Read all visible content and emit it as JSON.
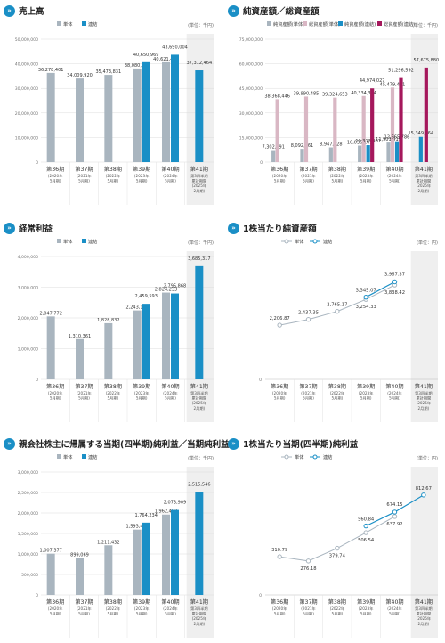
{
  "colors": {
    "nonconsol": "#a9b5bf",
    "consol": "#1a8fc6",
    "nonconsol_assets": "#d9b7c4",
    "consol_assets": "#a5185c",
    "shade": "#efefef",
    "grid": "#dcdcdc"
  },
  "title_icon": "»",
  "periods": [
    {
      "term": "第36期",
      "l1": "(2020年",
      "l2": "5月期)"
    },
    {
      "term": "第37期",
      "l1": "(2021年",
      "l2": "5月期)"
    },
    {
      "term": "第38期",
      "l1": "(2022年",
      "l2": "5月期)"
    },
    {
      "term": "第39期",
      "l1": "(2023年",
      "l2": "5月期)"
    },
    {
      "term": "第40期",
      "l1": "(2024年",
      "l2": "5月期)"
    },
    {
      "term": "第41期",
      "l1": "第3四半期",
      "l2": "累計期間",
      "l3": "(2025年",
      "l4": "2月期)"
    }
  ],
  "periods_assets_last": {
    "term": "第41期",
    "l1": "第3四半期",
    "l2": "会計期間末",
    "l3": "(2025年",
    "l4": "2月期)"
  },
  "chart_data": [
    {
      "type": "bar",
      "title": "売上高",
      "unit": "(単位：千円)",
      "legend": [
        "単体",
        "連結"
      ],
      "ylim": [
        0,
        50000000
      ],
      "yticks": [
        "0",
        "10,000,000",
        "20,000,000",
        "30,000,000",
        "40,000,000",
        "50,000,000"
      ],
      "series": [
        {
          "name": "単体",
          "values": [
            36278401,
            34009920,
            35473831,
            38080136,
            40621473,
            null
          ],
          "labels": [
            "36,278,401",
            "34,009,920",
            "35,473,831",
            "38,080,136",
            "40,621,473",
            ""
          ]
        },
        {
          "name": "連結",
          "values": [
            null,
            null,
            null,
            40650969,
            43690004,
            37312464
          ],
          "labels": [
            "",
            "",
            "",
            "40,650,969",
            "43,690,004",
            "37,312,464"
          ]
        }
      ]
    },
    {
      "type": "bar",
      "title": "純資産額／総資産額",
      "unit": "(単位：千円)",
      "legend": [
        "純資産額(単体)",
        "総資産額(単体)",
        "純資産額(連結)",
        "総資産額(連結)"
      ],
      "ylim": [
        0,
        75000000
      ],
      "yticks": [
        "0",
        "15,000,000",
        "30,000,000",
        "45,000,000",
        "60,000,000",
        "75,000,000"
      ],
      "series": [
        {
          "name": "純資産額(単体)",
          "values": [
            7302791,
            8092961,
            8947228,
            10036101,
            11901919,
            null
          ],
          "labels": [
            "7,302,791",
            "8,092,961",
            "8,947,228",
            "10,036,101",
            "11,901,919",
            ""
          ]
        },
        {
          "name": "総資産額(単体)",
          "values": [
            38368446,
            39990485,
            39324653,
            40334324,
            45479491,
            null
          ],
          "labels": [
            "38,368,446",
            "39,990,485",
            "39,324,653",
            "40,334,324",
            "45,479,491",
            ""
          ]
        },
        {
          "name": "純資産額(連結)",
          "values": [
            null,
            null,
            null,
            10313967,
            12665786,
            15349764
          ],
          "labels": [
            "",
            "",
            "",
            "10,313,967",
            "12,665,786",
            "15,349,764"
          ]
        },
        {
          "name": "総資産額(連結)",
          "values": [
            null,
            null,
            null,
            44974027,
            51296592,
            57675880
          ],
          "labels": [
            "",
            "",
            "",
            "44,974,027",
            "51,296,592",
            "57,675,880"
          ]
        }
      ]
    },
    {
      "type": "bar",
      "title": "経常利益",
      "unit": "(単位：千円)",
      "legend": [
        "単体",
        "連結"
      ],
      "ylim": [
        0,
        4000000
      ],
      "yticks": [
        "0",
        "1,000,000",
        "2,000,000",
        "3,000,000",
        "4,000,000"
      ],
      "series": [
        {
          "name": "単体",
          "values": [
            2047772,
            1310361,
            1828832,
            2243132,
            2824233,
            null
          ],
          "labels": [
            "2,047,772",
            "1,310,361",
            "1,828,832",
            "2,243,132",
            "2,824,233",
            ""
          ]
        },
        {
          "name": "連結",
          "values": [
            null,
            null,
            null,
            2459593,
            2795868,
            3685317
          ],
          "labels": [
            "",
            "",
            "",
            "2,459,593",
            "2,795,868",
            "3,685,317"
          ]
        }
      ]
    },
    {
      "type": "line",
      "title": "1株当たり純資産額",
      "unit": "(単位：円)",
      "legend": [
        "単体",
        "連結"
      ],
      "ylim": [
        0,
        5000
      ],
      "series": [
        {
          "name": "単体",
          "values": [
            2206.87,
            2437.35,
            2765.17,
            3254.33,
            3838.42,
            null
          ],
          "labels": [
            "2,206.87",
            "2,437.35",
            "2,765.17",
            "3,254.33",
            "3,838.42",
            ""
          ]
        },
        {
          "name": "連結",
          "values": [
            null,
            null,
            null,
            3345.07,
            3967.37,
            null
          ],
          "labels": [
            "",
            "",
            "",
            "3,345.07",
            "3,967.37",
            ""
          ]
        }
      ]
    },
    {
      "type": "bar",
      "title": "親会社株主に帰属する当期(四半期)純利益／当期純利益",
      "unit": "(単位：千円)",
      "legend": [
        "単体",
        "連結"
      ],
      "ylim": [
        0,
        3000000
      ],
      "yticks": [
        "0",
        "500,000",
        "1,000,000",
        "1,500,000",
        "2,000,000",
        "2,500,000",
        "3,000,000"
      ],
      "series": [
        {
          "name": "単体",
          "values": [
            1007377,
            899069,
            1211432,
            1593436,
            1962452,
            null
          ],
          "labels": [
            "1,007,377",
            "899,069",
            "1,211,432",
            "1,593,436",
            "1,962,452",
            ""
          ]
        },
        {
          "name": "連結",
          "values": [
            null,
            null,
            null,
            1764234,
            2073909,
            2515546
          ],
          "labels": [
            "",
            "",
            "",
            "1,764,234",
            "2,073,909",
            "2,515,546"
          ]
        }
      ]
    },
    {
      "type": "line",
      "title": "1株当たり当期(四半期)純利益",
      "unit": "(単位：円)",
      "legend": [
        "単体",
        "連結"
      ],
      "ylim": [
        0,
        1000
      ],
      "series": [
        {
          "name": "単体",
          "values": [
            310.79,
            276.18,
            379.74,
            506.54,
            637.92,
            null
          ],
          "labels": [
            "310.79",
            "276.18",
            "379.74",
            "506.54",
            "637.92",
            ""
          ]
        },
        {
          "name": "連結",
          "values": [
            null,
            null,
            null,
            560.84,
            674.15,
            812.67
          ],
          "labels": [
            "",
            "",
            "",
            "560.84",
            "674.15",
            "812.67"
          ]
        }
      ]
    }
  ]
}
